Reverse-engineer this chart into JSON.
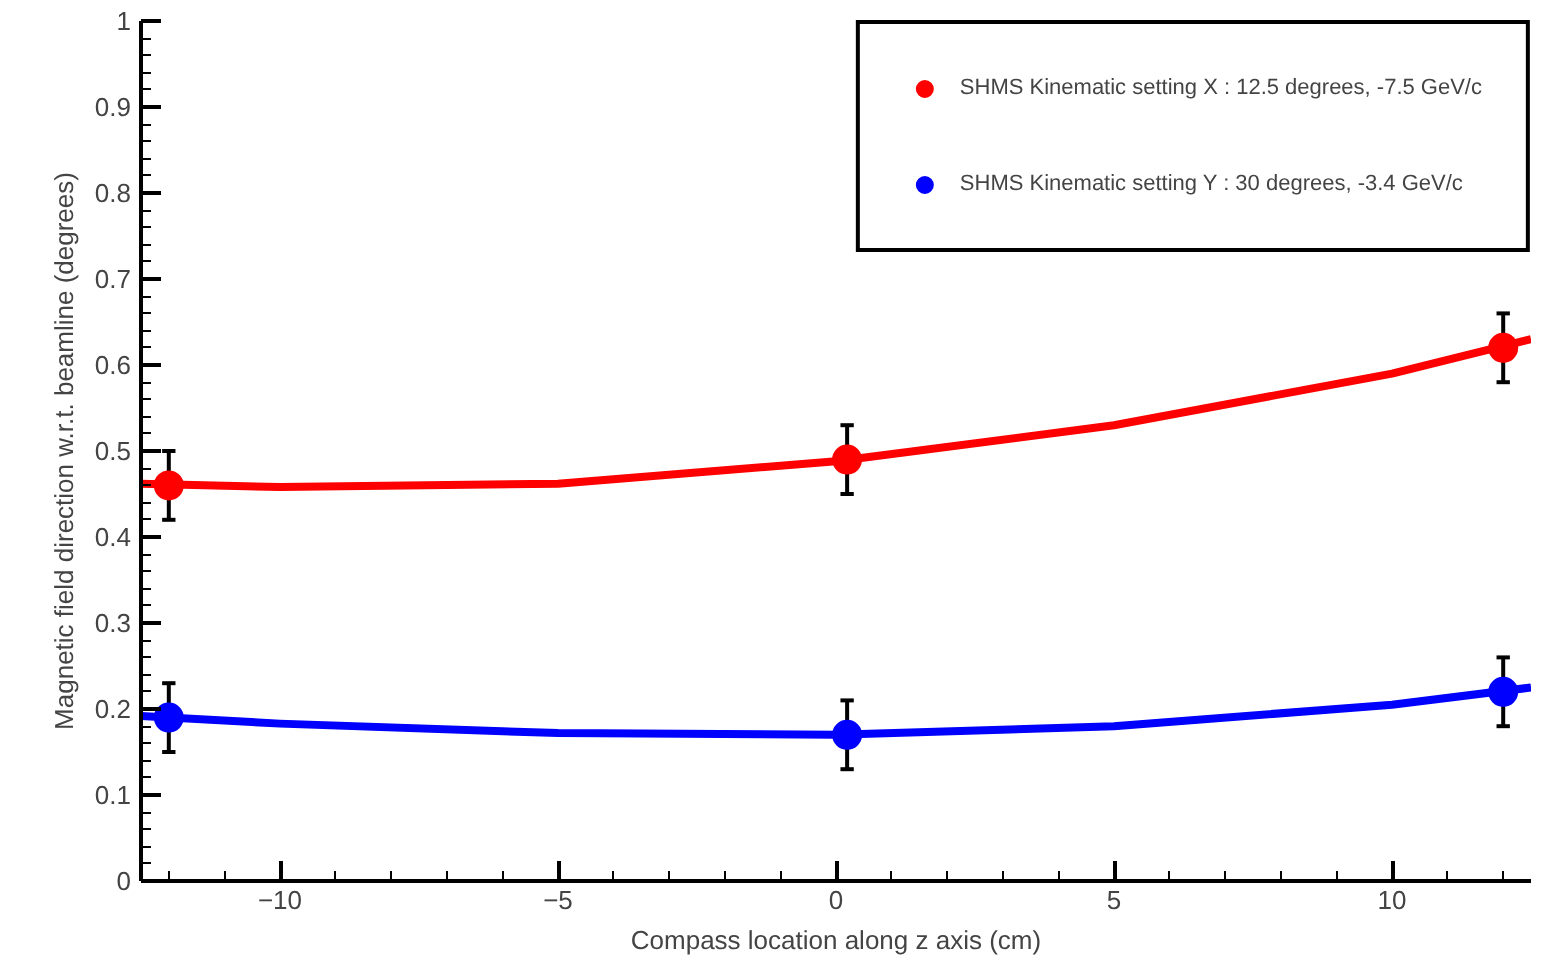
{
  "chart_data": {
    "type": "scatter",
    "xlabel": "Compass location along z axis (cm)",
    "ylabel": "Magnetic field direction w.r.t. beamline (degrees)",
    "x": [
      -12,
      0.2,
      12
    ],
    "series": [
      {
        "name": "SHMS Kinematic setting X : 12.5 degrees, -7.5 GeV/c",
        "color": "#ff0000",
        "values": [
          0.46,
          0.49,
          0.62
        ],
        "errors": [
          0.04,
          0.04,
          0.04
        ]
      },
      {
        "name": "SHMS Kinematic setting Y : 30 degrees, -3.4 GeV/c",
        "color": "#0000ff",
        "values": [
          0.19,
          0.17,
          0.22
        ],
        "errors": [
          0.04,
          0.04,
          0.04
        ]
      },
      {
        "type": "line",
        "marker": "none",
        "color": "#ff0000",
        "x": [
          -12.5,
          -10,
          -5,
          0,
          5,
          10,
          12.5
        ],
        "values": [
          0.462,
          0.458,
          0.462,
          0.488,
          0.53,
          0.59,
          0.63
        ]
      },
      {
        "type": "line",
        "marker": "none",
        "color": "#0000ff",
        "x": [
          -12.5,
          -10,
          -5,
          0,
          5,
          10,
          12.5
        ],
        "values": [
          0.192,
          0.183,
          0.172,
          0.17,
          0.18,
          0.205,
          0.225
        ]
      }
    ],
    "xlim": [
      -12.5,
      12.5
    ],
    "ylim": [
      0,
      1
    ],
    "xticks": [
      {
        "value": -10,
        "label": "−10"
      },
      {
        "value": -5,
        "label": "−5"
      },
      0,
      5,
      10
    ],
    "yticks": [
      0,
      0.1,
      0.2,
      0.3,
      0.4,
      0.5,
      0.6,
      0.7,
      0.8,
      0.9,
      1
    ],
    "marker": "circle",
    "line_style": "solid",
    "legend": "top right",
    "grid": false
  }
}
